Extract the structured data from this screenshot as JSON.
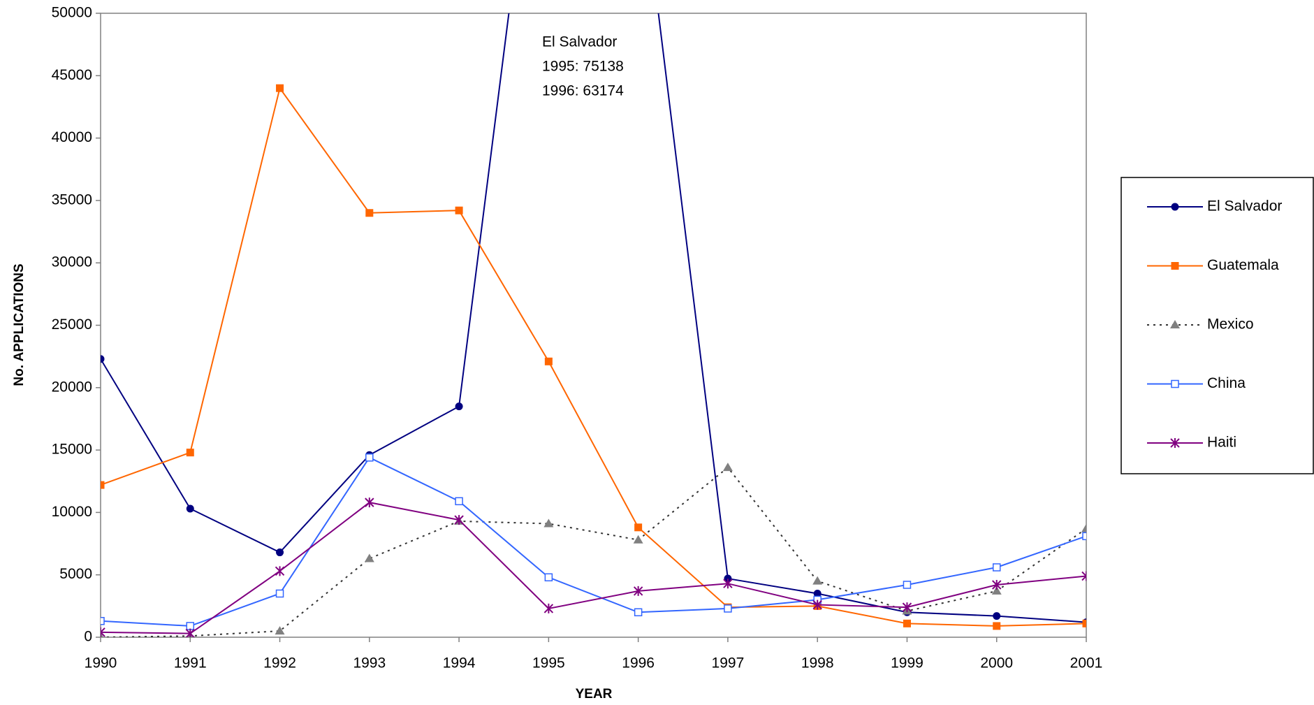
{
  "chart_data": {
    "type": "line",
    "x_label": "YEAR",
    "y_label": "No. APPLICATIONS",
    "annotation": [
      "El Salvador",
      "1995: 75138",
      "1996: 63174"
    ],
    "x": [
      1990,
      1991,
      1992,
      1993,
      1994,
      1995,
      1996,
      1997,
      1998,
      1999,
      2000,
      2001
    ],
    "xlim": [
      1990,
      2001
    ],
    "xticks": [
      1990,
      1991,
      1992,
      1993,
      1994,
      1995,
      1996,
      1997,
      1998,
      1999,
      2000,
      2001
    ],
    "ylim": [
      0,
      50000
    ],
    "yticks": [
      0,
      5000,
      10000,
      15000,
      20000,
      25000,
      30000,
      35000,
      40000,
      45000,
      50000
    ],
    "grid": false,
    "legend": "right",
    "series": [
      {
        "name": "El Salvador",
        "color": "#000080",
        "marker": "circle",
        "dash": "solid",
        "values": [
          22300,
          10300,
          6800,
          14600,
          18500,
          75138,
          63174,
          4700,
          3500,
          2000,
          1700,
          1200
        ]
      },
      {
        "name": "Guatemala",
        "color": "#ff6600",
        "marker": "square",
        "dash": "solid",
        "values": [
          12200,
          14800,
          44000,
          34000,
          34200,
          22100,
          8800,
          2400,
          2500,
          1100,
          900,
          1100
        ]
      },
      {
        "name": "Mexico",
        "color": "#808080",
        "marker": "triangle",
        "dash": "dotted",
        "line_color": "#333333",
        "values": [
          0,
          100,
          500,
          6300,
          9300,
          9100,
          7800,
          13600,
          4500,
          2100,
          3700,
          8700
        ]
      },
      {
        "name": "China",
        "color": "#3366ff",
        "marker": "open-square",
        "dash": "solid",
        "values": [
          1300,
          900,
          3500,
          14400,
          10900,
          4800,
          2000,
          2300,
          3000,
          4200,
          5600,
          8100
        ]
      },
      {
        "name": "Haiti",
        "color": "#800080",
        "marker": "star",
        "dash": "solid",
        "values": [
          400,
          300,
          5300,
          10800,
          9400,
          2300,
          3700,
          4300,
          2600,
          2400,
          4200,
          4900
        ]
      }
    ]
  }
}
